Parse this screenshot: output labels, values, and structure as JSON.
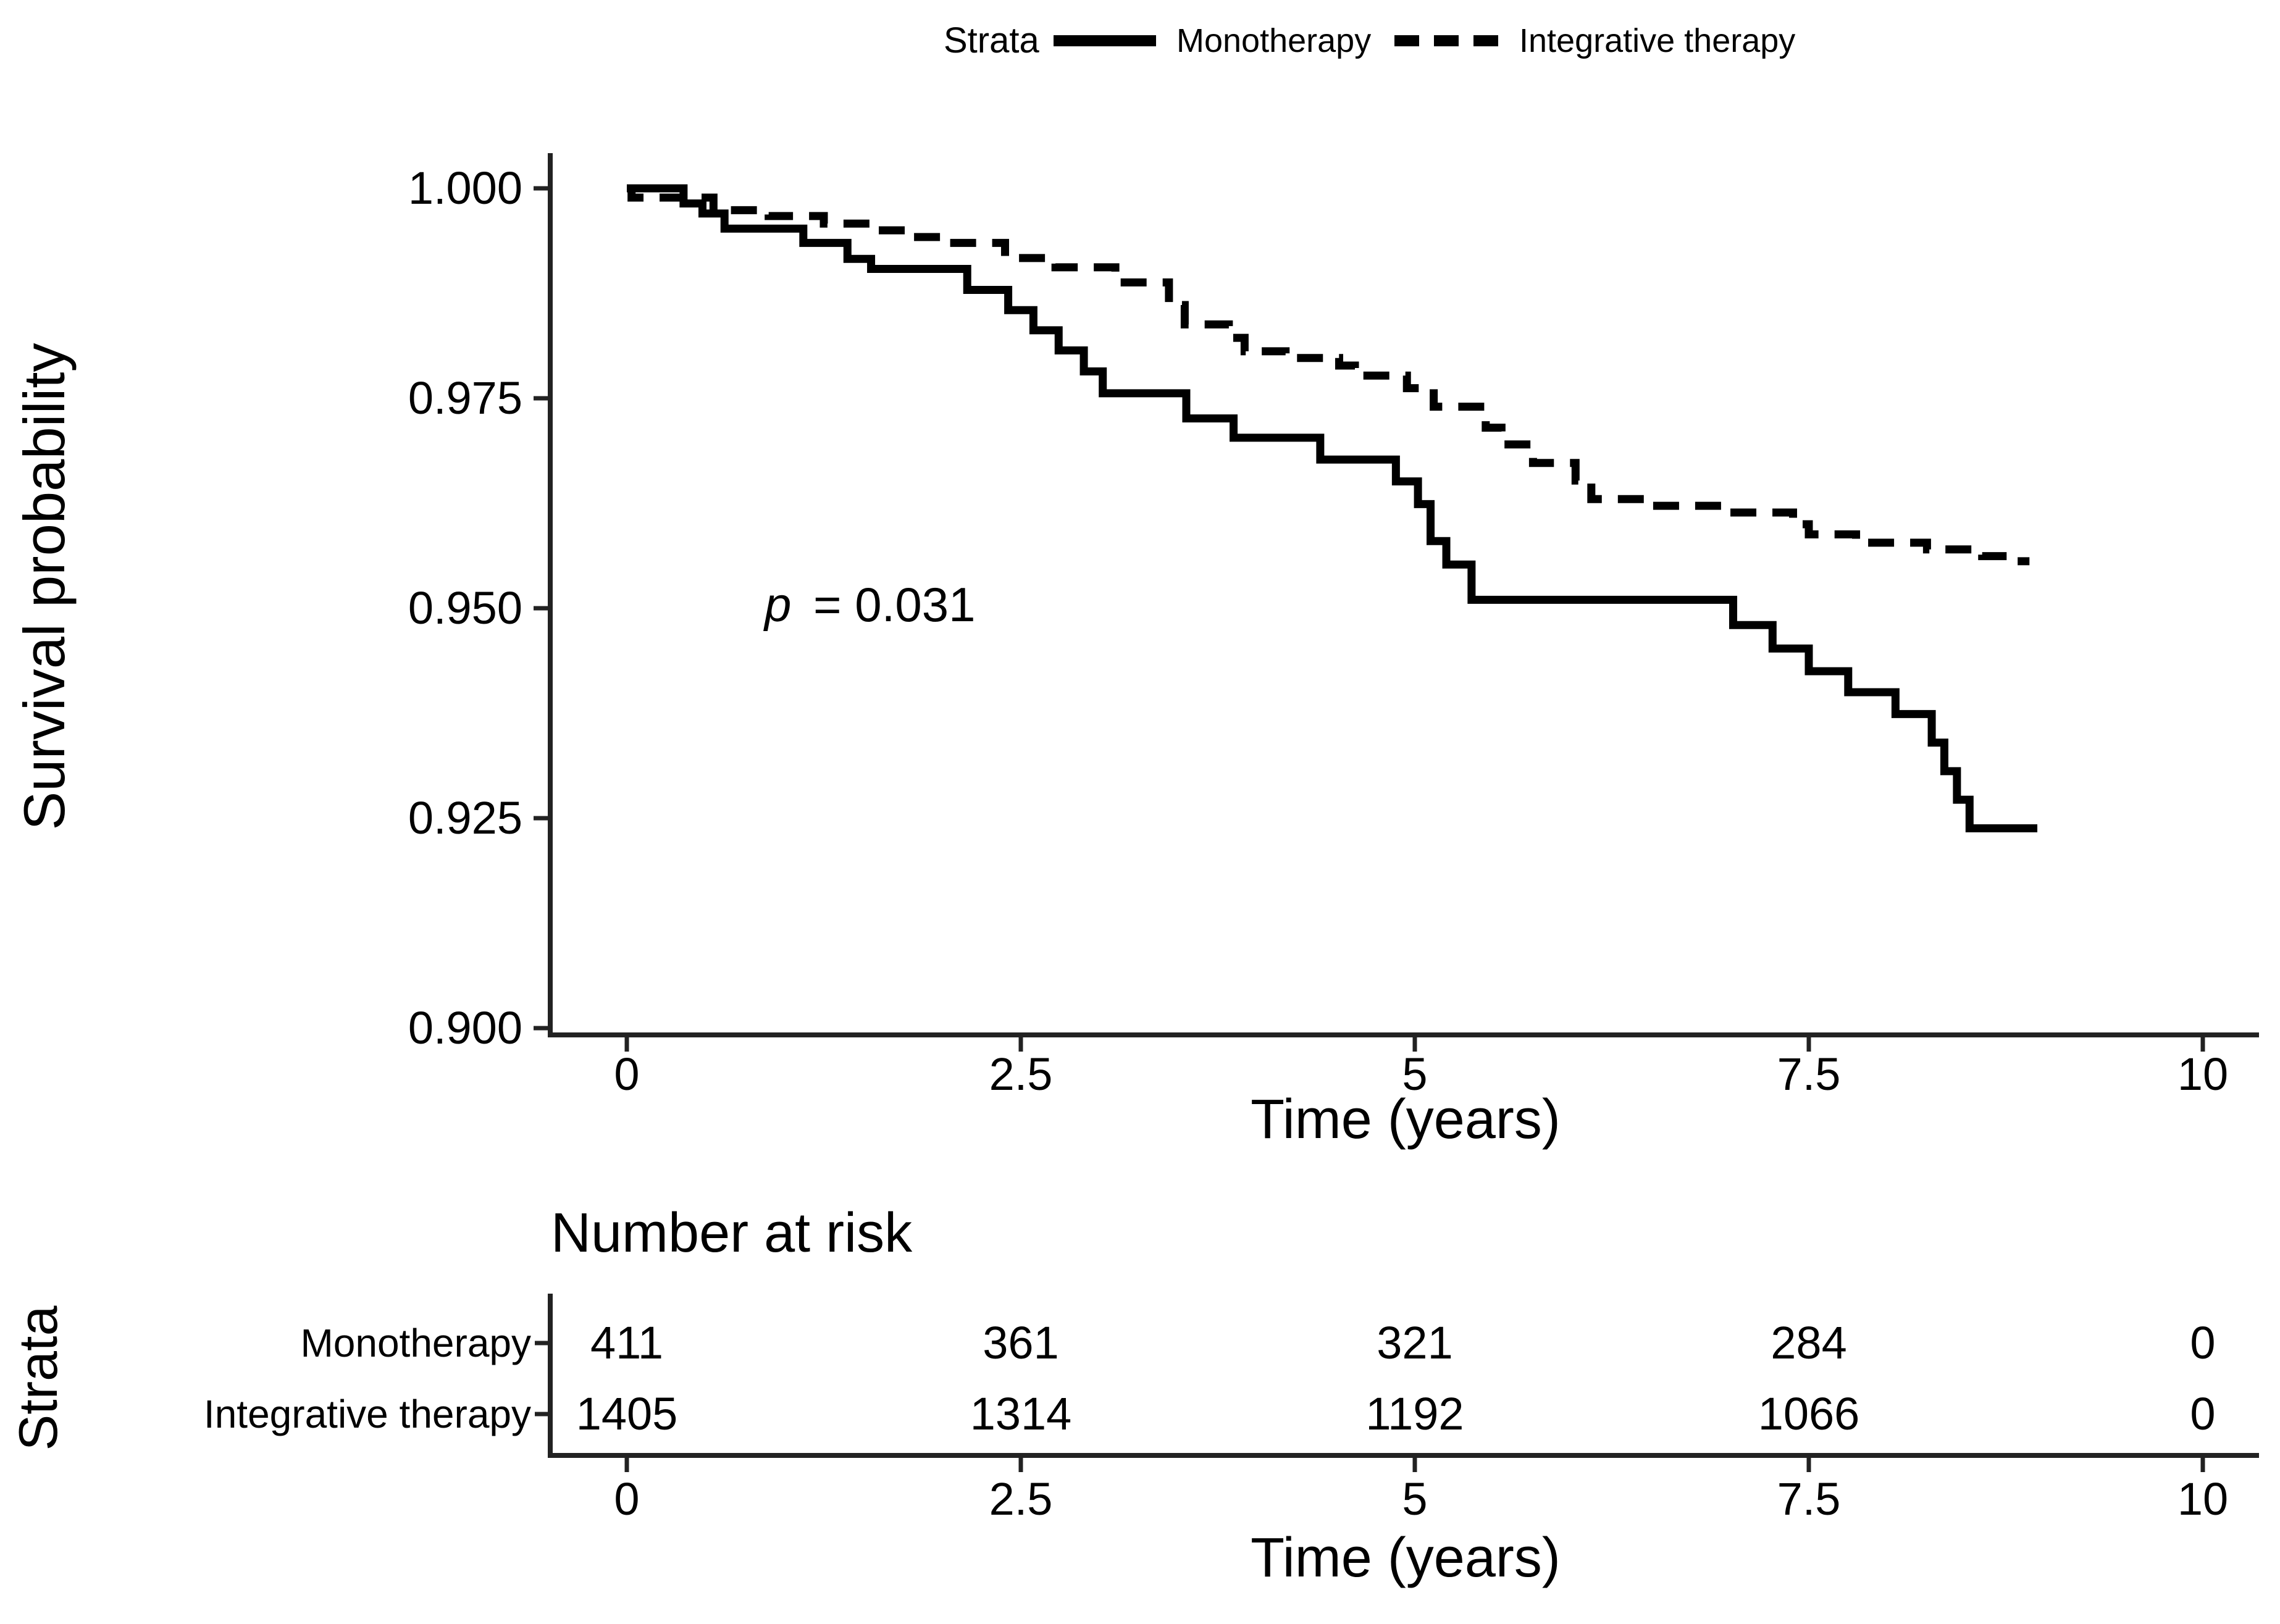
{
  "chart_data": {
    "type": "line",
    "subtype": "kaplan-meier-step-curves",
    "title": "",
    "xlabel": "Time (years)",
    "ylabel": "Survival probability",
    "xlim": [
      0,
      10
    ],
    "ylim": [
      0.9,
      1.0
    ],
    "grid": false,
    "legend_position": "top",
    "line_color": "#000000",
    "axis_color": "#222222",
    "x_ticks": [
      {
        "value": 0,
        "label": "0"
      },
      {
        "value": 2.5,
        "label": "2.5"
      },
      {
        "value": 5,
        "label": "5"
      },
      {
        "value": 7.5,
        "label": "7.5"
      },
      {
        "value": 10,
        "label": "10"
      }
    ],
    "y_ticks": [
      {
        "value": 1.0,
        "label": "1.000"
      },
      {
        "value": 0.975,
        "label": "0.975"
      },
      {
        "value": 0.95,
        "label": "0.950"
      },
      {
        "value": 0.925,
        "label": "0.925"
      },
      {
        "value": 0.9,
        "label": "0.900"
      }
    ],
    "legend": {
      "title": "Strata",
      "items": [
        {
          "label": "Monotherapy",
          "line_style": "solid",
          "color": "#000000"
        },
        {
          "label": "Integrative therapy",
          "line_style": "dashed",
          "color": "#000000"
        }
      ]
    },
    "annotation": {
      "p_symbol": "p",
      "p_text": " = 0.031"
    },
    "series": [
      {
        "name": "Monotherapy",
        "line_style": "solid",
        "color": "#000000",
        "end_time": 8.95,
        "steps": [
          [
            0.0,
            1.0
          ],
          [
            0.36,
            0.9982
          ],
          [
            0.48,
            0.997
          ],
          [
            0.62,
            0.9952
          ],
          [
            1.12,
            0.9935
          ],
          [
            1.4,
            0.9916
          ],
          [
            1.55,
            0.9904
          ],
          [
            2.16,
            0.9879
          ],
          [
            2.42,
            0.9855
          ],
          [
            2.58,
            0.9831
          ],
          [
            2.74,
            0.9807
          ],
          [
            2.9,
            0.9782
          ],
          [
            3.02,
            0.9756
          ],
          [
            3.55,
            0.9726
          ],
          [
            3.85,
            0.9703
          ],
          [
            4.4,
            0.9677
          ],
          [
            4.88,
            0.9651
          ],
          [
            5.02,
            0.9624
          ],
          [
            5.1,
            0.958
          ],
          [
            5.2,
            0.9552
          ],
          [
            5.36,
            0.951
          ],
          [
            7.02,
            0.948
          ],
          [
            7.27,
            0.9452
          ],
          [
            7.5,
            0.9425
          ],
          [
            7.75,
            0.94
          ],
          [
            8.05,
            0.9374
          ],
          [
            8.28,
            0.934
          ],
          [
            8.36,
            0.9306
          ],
          [
            8.44,
            0.9272
          ],
          [
            8.52,
            0.9238
          ]
        ]
      },
      {
        "name": "Integrative therapy",
        "line_style": "dashed",
        "color": "#000000",
        "end_time": 8.9,
        "steps": [
          [
            0.0,
            1.0
          ],
          [
            0.03,
            0.9989
          ],
          [
            0.55,
            0.9974
          ],
          [
            0.9,
            0.9967
          ],
          [
            1.25,
            0.9958
          ],
          [
            1.55,
            0.995
          ],
          [
            1.8,
            0.9942
          ],
          [
            2.05,
            0.9935
          ],
          [
            2.4,
            0.9917
          ],
          [
            2.72,
            0.9906
          ],
          [
            3.1,
            0.9888
          ],
          [
            3.44,
            0.9861
          ],
          [
            3.54,
            0.9838
          ],
          [
            3.82,
            0.9822
          ],
          [
            3.92,
            0.9806
          ],
          [
            4.18,
            0.9798
          ],
          [
            4.52,
            0.9789
          ],
          [
            4.62,
            0.9777
          ],
          [
            4.95,
            0.9762
          ],
          [
            5.12,
            0.974
          ],
          [
            5.45,
            0.9715
          ],
          [
            5.55,
            0.9695
          ],
          [
            5.75,
            0.9673
          ],
          [
            6.02,
            0.9652
          ],
          [
            6.12,
            0.963
          ],
          [
            6.5,
            0.9622
          ],
          [
            6.95,
            0.9614
          ],
          [
            7.4,
            0.96
          ],
          [
            7.5,
            0.9588
          ],
          [
            7.8,
            0.9578
          ],
          [
            8.25,
            0.957
          ],
          [
            8.6,
            0.9562
          ],
          [
            8.8,
            0.9556
          ]
        ]
      }
    ],
    "risk_table": {
      "title": "Number at risk",
      "strata_axis_label": "Strata",
      "time_label": "Time (years)",
      "times": [
        0,
        2.5,
        5,
        7.5,
        10
      ],
      "time_labels": [
        "0",
        "2.5",
        "5",
        "7.5",
        "10"
      ],
      "rows": [
        {
          "label": "Monotherapy",
          "counts": [
            411,
            361,
            321,
            284,
            0
          ]
        },
        {
          "label": "Integrative therapy",
          "counts": [
            1405,
            1314,
            1192,
            1066,
            0
          ]
        }
      ]
    }
  }
}
